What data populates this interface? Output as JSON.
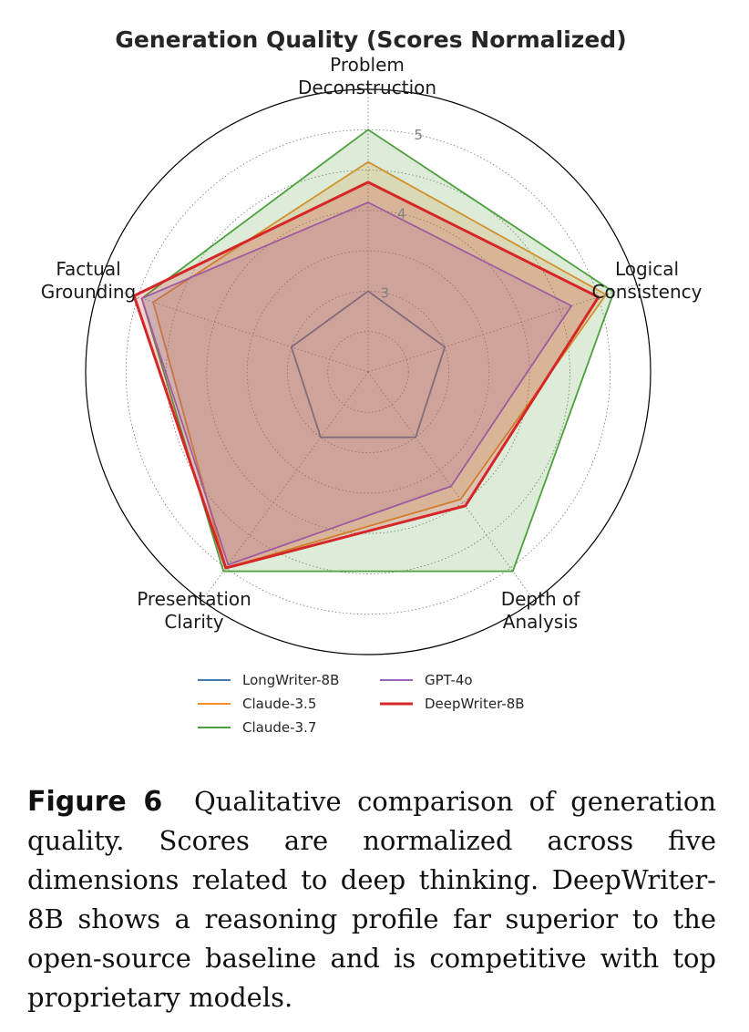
{
  "chart_data": {
    "type": "radar",
    "title": "Generation Quality (Scores Normalized)",
    "axes": [
      [
        "Problem",
        "Deconstruction"
      ],
      [
        "Logical",
        "Consistency"
      ],
      [
        "Depth of",
        "Analysis"
      ],
      [
        "Presentation",
        "Clarity"
      ],
      [
        "Factual",
        "Grounding"
      ]
    ],
    "r_ticks": [
      "3",
      "4",
      "5"
    ],
    "r_tick_values": [
      3,
      4,
      5
    ],
    "rlim": [
      2,
      5.5
    ],
    "grid": true,
    "legend_position": "bottom-center",
    "series": [
      {
        "name": "LongWriter-8B",
        "color": "#4878b8",
        "values": [
          3.0,
          3.0,
          3.0,
          3.0,
          3.0
        ],
        "fill": false,
        "bold": false
      },
      {
        "name": "Claude-3.5",
        "color": "#f28e2b",
        "values": [
          4.6,
          5.1,
          3.95,
          5.0,
          4.8
        ],
        "fill": true,
        "bold": false
      },
      {
        "name": "Claude-3.7",
        "color": "#4e9f3d",
        "values": [
          5.0,
          5.2,
          5.05,
          5.05,
          4.95
        ],
        "fill": true,
        "bold": false
      },
      {
        "name": "GPT-4o",
        "color": "#9467bd",
        "values": [
          4.1,
          4.65,
          3.75,
          4.95,
          4.95
        ],
        "fill": true,
        "bold": false
      },
      {
        "name": "DeepWriter-8B",
        "color": "#d62728",
        "values": [
          4.35,
          5.0,
          4.05,
          5.0,
          5.05
        ],
        "fill": true,
        "bold": true
      }
    ]
  },
  "caption": {
    "figure_label": "Figure 6",
    "text": "Qualitative comparison of generation quality. Scores are normalized across five dimensions related to deep thinking. DeepWriter-8B shows a reasoning profile far superior to the open-source baseline and is competitive with top proprietary models."
  }
}
